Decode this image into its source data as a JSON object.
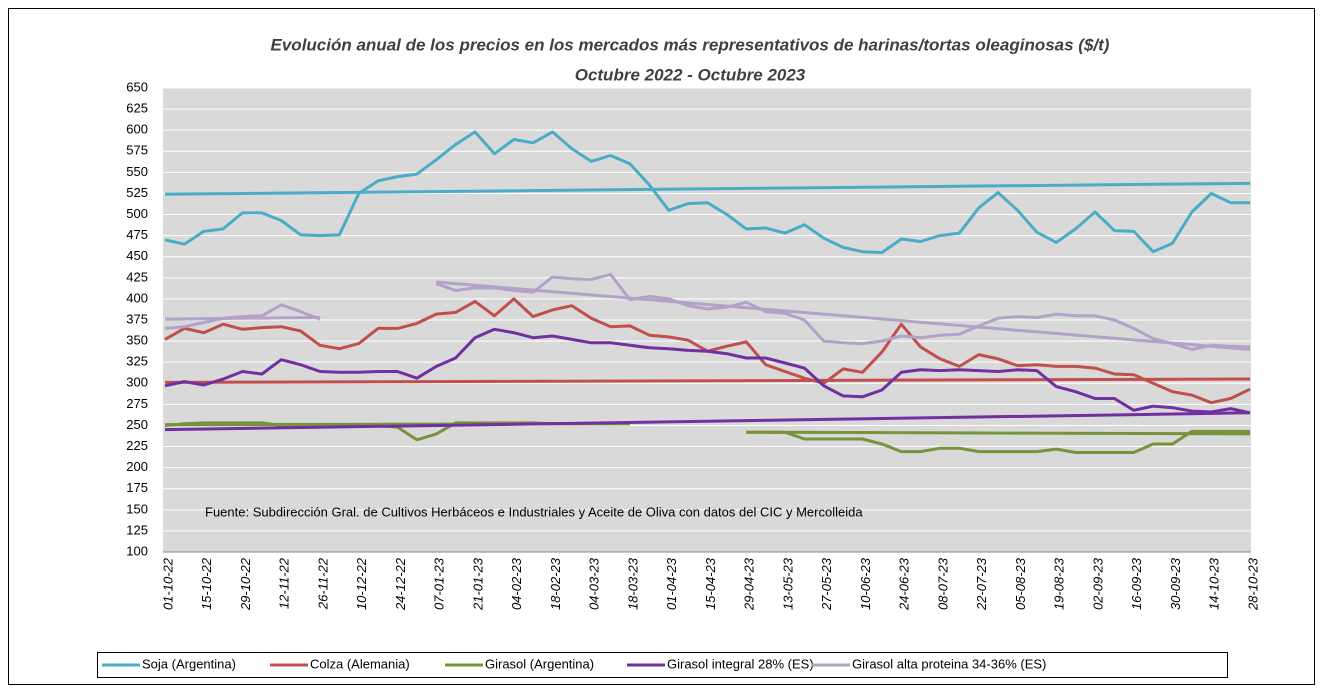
{
  "chart_data": {
    "type": "line",
    "title": "Evolución anual de los precios en los mercados más representativos de harinas/tortas oleaginosas ($/t)",
    "subtitle": "Octubre 2022 - Octubre 2023",
    "annotation": "Fuente: Subdirección Gral. de Cultivos Herbáceos e Industriales y Aceite de Oliva con datos del CIC y Mercolleida",
    "categories": [
      "01-10-22",
      null,
      "15-10-22",
      null,
      "29-10-22",
      null,
      "12-11-22",
      null,
      "26-11-22",
      null,
      "10-12-22",
      null,
      "24-12-22",
      null,
      "07-01-23",
      null,
      "21-01-23",
      null,
      "04-02-23",
      null,
      "18-02-23",
      null,
      "04-03-23",
      null,
      "18-03-23",
      null,
      "01-04-23",
      null,
      "15-04-23",
      null,
      "29-04-23",
      null,
      "13-05-23",
      null,
      "27-05-23",
      null,
      "10-06-23",
      null,
      "24-06-23",
      null,
      "08-07-23",
      null,
      "22-07-23",
      null,
      "05-08-23",
      null,
      "19-08-23",
      null,
      "02-09-23",
      null,
      "16-09-23",
      null,
      "30-09-23",
      null,
      "14-10-23",
      null,
      "28-10-23"
    ],
    "ylim": [
      100,
      650
    ],
    "yticks": [
      100,
      125,
      150,
      175,
      200,
      225,
      250,
      275,
      300,
      325,
      350,
      375,
      400,
      425,
      450,
      475,
      500,
      525,
      550,
      575,
      600,
      625,
      650
    ],
    "grid": true,
    "series": [
      {
        "name": "Soja (Argentina)",
        "color": "#4bacc6",
        "trends": [
          [
            524,
            537
          ]
        ],
        "values": [
          470,
          465,
          480,
          483,
          502,
          502,
          493,
          476,
          475,
          476,
          525,
          540,
          545,
          548,
          565,
          583,
          598,
          572,
          589,
          585,
          598,
          578,
          563,
          570,
          560,
          535,
          505,
          513,
          514,
          500,
          483,
          484,
          478,
          488,
          472,
          461,
          456,
          455,
          471,
          468,
          475,
          478,
          508,
          526,
          505,
          479,
          467,
          483,
          503,
          481,
          480,
          456,
          466,
          503,
          525,
          514,
          514
        ]
      },
      {
        "name": "Colza (Alemania)",
        "color": "#c0504d",
        "trends": [
          [
            301,
            305
          ]
        ],
        "values": [
          352,
          365,
          360,
          370,
          364,
          366,
          367,
          362,
          345,
          341,
          347,
          365,
          365,
          371,
          382,
          384,
          397,
          380,
          400,
          379,
          387,
          392,
          377,
          367,
          368,
          357,
          355,
          351,
          338,
          344,
          349,
          322,
          314,
          306,
          300,
          317,
          313,
          337,
          370,
          343,
          329,
          320,
          334,
          329,
          321,
          322,
          320,
          320,
          318,
          311,
          310,
          300,
          290,
          286,
          277,
          282,
          293
        ]
      },
      {
        "name": "Girasol (Argentina)",
        "color": "#77933c",
        "trends": [
          [
            251,
            252
          ],
          [
            242,
            240
          ]
        ],
        "values": [
          250,
          252,
          253,
          253,
          253,
          253,
          250,
          250,
          250,
          250,
          250,
          250,
          248,
          233,
          240,
          253,
          253,
          253,
          253,
          253,
          252,
          252,
          252,
          252,
          252,
          null,
          null,
          null,
          null,
          null,
          242,
          242,
          242,
          234,
          234,
          234,
          234,
          228,
          219,
          219,
          223,
          223,
          219,
          219,
          219,
          219,
          222,
          218,
          218,
          218,
          218,
          228,
          228,
          243,
          243,
          243,
          243
        ]
      },
      {
        "name": "Girasol integral 28% (ES)",
        "color": "#7030a0",
        "trends": [
          [
            245,
            265
          ]
        ],
        "values": [
          297,
          302,
          298,
          305,
          314,
          311,
          328,
          322,
          314,
          313,
          313,
          314,
          314,
          306,
          320,
          330,
          354,
          364,
          360,
          354,
          356,
          352,
          348,
          348,
          345,
          342,
          341,
          339,
          338,
          335,
          330,
          330,
          324,
          318,
          297,
          285,
          284,
          292,
          313,
          316,
          315,
          316,
          315,
          314,
          316,
          315,
          296,
          290,
          282,
          282,
          268,
          273,
          271,
          267,
          266,
          270,
          265
        ]
      },
      {
        "name": "Girasol alta proteina 34-36% (ES)",
        "color": "#b3a2c7",
        "trends": [
          [
            376,
            378
          ],
          [
            420,
            340
          ]
        ],
        "values": [
          365,
          367,
          372,
          377,
          379,
          380,
          393,
          385,
          376,
          null,
          null,
          null,
          null,
          null,
          418,
          410,
          413,
          413,
          410,
          408,
          426,
          424,
          423,
          429,
          399,
          403,
          400,
          392,
          388,
          390,
          396,
          385,
          383,
          375,
          350,
          348,
          347,
          350,
          356,
          354,
          357,
          358,
          368,
          377,
          379,
          378,
          382,
          380,
          380,
          375,
          365,
          353,
          347,
          340,
          345,
          344,
          343
        ]
      }
    ]
  }
}
